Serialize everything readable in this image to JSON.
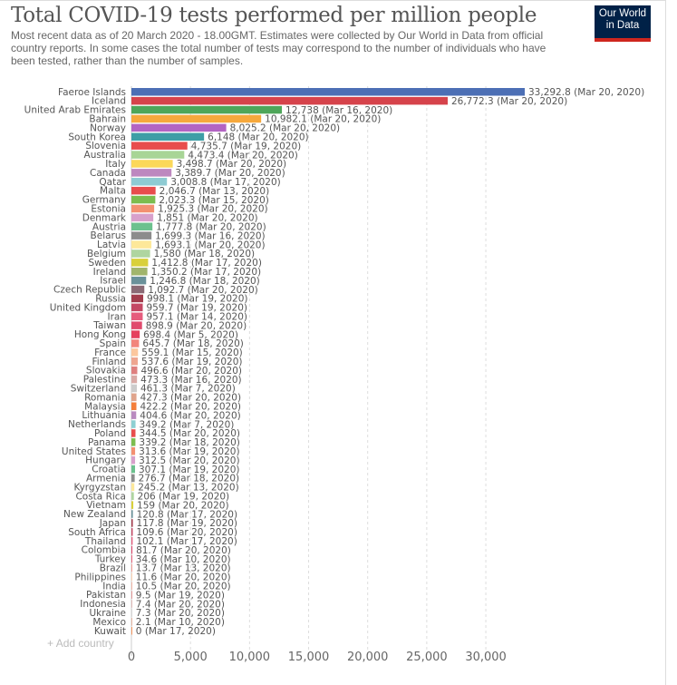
{
  "header": {
    "title": "Total COVID-19 tests performed per million people",
    "subtitle": "Most recent data as of 20 March 2020 - 18.00GMT. Estimates were collected by Our World in Data from official country reports. In some cases the total number of tests may correspond to the number of individuals who have been tested, rather than the number of samples.",
    "logo_line1": "Our World",
    "logo_line2": "in Data"
  },
  "controls": {
    "add_country_icon": "plus-icon",
    "add_country_label": "Add country"
  },
  "chart_data": {
    "type": "bar",
    "orientation": "horizontal",
    "title": "Total COVID-19 tests performed per million people",
    "xlabel": "",
    "ylabel": "",
    "xlim": [
      0,
      33292.8
    ],
    "xticks": [
      0,
      5000,
      10000,
      15000,
      20000,
      25000,
      30000
    ],
    "xtick_labels": [
      "0",
      "5,000",
      "10,000",
      "15,000",
      "20,000",
      "25,000",
      "30,000"
    ],
    "grid": "vertical dashed",
    "bars": [
      {
        "country": "Faeroe Islands",
        "value": 33292.8,
        "label": "33,292.8",
        "date": "Mar 20, 2020",
        "color": "#4c6fb5"
      },
      {
        "country": "Iceland",
        "value": 26772.3,
        "label": "26,772.3",
        "date": "Mar 20, 2020",
        "color": "#d6434b"
      },
      {
        "country": "United Arab Emirates",
        "value": 12738,
        "label": "12,738",
        "date": "Mar 16, 2020",
        "color": "#4ea65a"
      },
      {
        "country": "Bahrain",
        "value": 10982.1,
        "label": "10,982.1",
        "date": "Mar 20, 2020",
        "color": "#f6a83c"
      },
      {
        "country": "Norway",
        "value": 8025.2,
        "label": "8,025.2",
        "date": "Mar 20, 2020",
        "color": "#b364c3"
      },
      {
        "country": "South Korea",
        "value": 6148,
        "label": "6,148",
        "date": "Mar 20, 2020",
        "color": "#3e9ea6"
      },
      {
        "country": "Slovenia",
        "value": 4735.7,
        "label": "4,735.7",
        "date": "Mar 19, 2020",
        "color": "#e84d4d"
      },
      {
        "country": "Australia",
        "value": 4473.4,
        "label": "4,473.4",
        "date": "Mar 20, 2020",
        "color": "#a8d596"
      },
      {
        "country": "Italy",
        "value": 3498.7,
        "label": "3,498.7",
        "date": "Mar 20, 2020",
        "color": "#fbd85a"
      },
      {
        "country": "Canada",
        "value": 3389.7,
        "label": "3,389.7",
        "date": "Mar 20, 2020",
        "color": "#bd88bf"
      },
      {
        "country": "Qatar",
        "value": 3008.8,
        "label": "3,008.8",
        "date": "Mar 17, 2020",
        "color": "#8ecbd3"
      },
      {
        "country": "Malta",
        "value": 2046.7,
        "label": "2,046.7",
        "date": "Mar 13, 2020",
        "color": "#e84d4d"
      },
      {
        "country": "Germany",
        "value": 2023.3,
        "label": "2,023.3",
        "date": "Mar 15, 2020",
        "color": "#7cbd4f"
      },
      {
        "country": "Estonia",
        "value": 1925.3,
        "label": "1,925.3",
        "date": "Mar 20, 2020",
        "color": "#f39071"
      },
      {
        "country": "Denmark",
        "value": 1851,
        "label": "1,851",
        "date": "Mar 20, 2020",
        "color": "#d8a0cb"
      },
      {
        "country": "Austria",
        "value": 1777.8,
        "label": "1,777.8",
        "date": "Mar 20, 2020",
        "color": "#6cc18e"
      },
      {
        "country": "Belarus",
        "value": 1699.3,
        "label": "1,699.3",
        "date": "Mar 16, 2020",
        "color": "#8c8c8c"
      },
      {
        "country": "Latvia",
        "value": 1693.1,
        "label": "1,693.1",
        "date": "Mar 20, 2020",
        "color": "#fde89a"
      },
      {
        "country": "Belgium",
        "value": 1580,
        "label": "1,580",
        "date": "Mar 18, 2020",
        "color": "#afd5a0"
      },
      {
        "country": "Sweden",
        "value": 1412.8,
        "label": "1,412.8",
        "date": "Mar 17, 2020",
        "color": "#d9d03a"
      },
      {
        "country": "Ireland",
        "value": 1350.2,
        "label": "1,350.2",
        "date": "Mar 17, 2020",
        "color": "#a1b56c"
      },
      {
        "country": "Israel",
        "value": 1246.8,
        "label": "1,246.8",
        "date": "Mar 18, 2020",
        "color": "#6a919a"
      },
      {
        "country": "Czech Republic",
        "value": 1092.7,
        "label": "1,092.7",
        "date": "Mar 20, 2020",
        "color": "#8a6a75"
      },
      {
        "country": "Russia",
        "value": 998.1,
        "label": "998.1",
        "date": "Mar 19, 2020",
        "color": "#a23c4c"
      },
      {
        "country": "United Kingdom",
        "value": 959.7,
        "label": "959.7",
        "date": "Mar 19, 2020",
        "color": "#c44864"
      },
      {
        "country": "Iran",
        "value": 957.1,
        "label": "957.1",
        "date": "Mar 14, 2020",
        "color": "#e65c7d"
      },
      {
        "country": "Taiwan",
        "value": 898.9,
        "label": "898.9",
        "date": "Mar 20, 2020",
        "color": "#e04a6d"
      },
      {
        "country": "Hong Kong",
        "value": 698.4,
        "label": "698.4",
        "date": "Mar 5, 2020",
        "color": "#e5415e"
      },
      {
        "country": "Spain",
        "value": 645.7,
        "label": "645.7",
        "date": "Mar 18, 2020",
        "color": "#f2857c"
      },
      {
        "country": "France",
        "value": 559.1,
        "label": "559.1",
        "date": "Mar 15, 2020",
        "color": "#fcc79e"
      },
      {
        "country": "Finland",
        "value": 537.6,
        "label": "537.6",
        "date": "Mar 19, 2020",
        "color": "#eea590"
      },
      {
        "country": "Slovakia",
        "value": 496.6,
        "label": "496.6",
        "date": "Mar 20, 2020",
        "color": "#de7f7f"
      },
      {
        "country": "Palestine",
        "value": 473.3,
        "label": "473.3",
        "date": "Mar 16, 2020",
        "color": "#d9aaa6"
      },
      {
        "country": "Switzerland",
        "value": 461.3,
        "label": "461.3",
        "date": "Mar 7, 2020",
        "color": "#cccccc"
      },
      {
        "country": "Romania",
        "value": 427.3,
        "label": "427.3",
        "date": "Mar 20, 2020",
        "color": "#e0a48c"
      },
      {
        "country": "Malaysia",
        "value": 422.2,
        "label": "422.2",
        "date": "Mar 20, 2020",
        "color": "#f47e3a"
      },
      {
        "country": "Lithuania",
        "value": 404.6,
        "label": "404.6",
        "date": "Mar 20, 2020",
        "color": "#b98abf"
      },
      {
        "country": "Netherlands",
        "value": 349.2,
        "label": "349.2",
        "date": "Mar 7, 2020",
        "color": "#8ecfd2"
      },
      {
        "country": "Poland",
        "value": 344.5,
        "label": "344.5",
        "date": "Mar 20, 2020",
        "color": "#e84d4d"
      },
      {
        "country": "Panama",
        "value": 339.2,
        "label": "339.2",
        "date": "Mar 18, 2020",
        "color": "#7cbd4f"
      },
      {
        "country": "United States",
        "value": 313.6,
        "label": "313.6",
        "date": "Mar 19, 2020",
        "color": "#f39071"
      },
      {
        "country": "Hungary",
        "value": 312.5,
        "label": "312.5",
        "date": "Mar 20, 2020",
        "color": "#d8a0cb"
      },
      {
        "country": "Croatia",
        "value": 307.1,
        "label": "307.1",
        "date": "Mar 19, 2020",
        "color": "#6cc18e"
      },
      {
        "country": "Armenia",
        "value": 276.7,
        "label": "276.7",
        "date": "Mar 18, 2020",
        "color": "#8c8c8c"
      },
      {
        "country": "Kyrgyzstan",
        "value": 245.2,
        "label": "245.2",
        "date": "Mar 13, 2020",
        "color": "#fde89a"
      },
      {
        "country": "Costa Rica",
        "value": 206,
        "label": "206",
        "date": "Mar 19, 2020",
        "color": "#afd5a0"
      },
      {
        "country": "Vietnam",
        "value": 159,
        "label": "159",
        "date": "Mar 20, 2020",
        "color": "#d9d03a"
      },
      {
        "country": "New Zealand",
        "value": 120.8,
        "label": "120.8",
        "date": "Mar 17, 2020",
        "color": "#6a919a"
      },
      {
        "country": "Japan",
        "value": 117.8,
        "label": "117.8",
        "date": "Mar 19, 2020",
        "color": "#a23c4c"
      },
      {
        "country": "South Africa",
        "value": 109.6,
        "label": "109.6",
        "date": "Mar 20, 2020",
        "color": "#c44864"
      },
      {
        "country": "Thailand",
        "value": 102.1,
        "label": "102.1",
        "date": "Mar 17, 2020",
        "color": "#e65c7d"
      },
      {
        "country": "Colombia",
        "value": 81.7,
        "label": "81.7",
        "date": "Mar 20, 2020",
        "color": "#e04a6d"
      },
      {
        "country": "Turkey",
        "value": 34.6,
        "label": "34.6",
        "date": "Mar 10, 2020",
        "color": "#e5415e"
      },
      {
        "country": "Brazil",
        "value": 13.7,
        "label": "13.7",
        "date": "Mar 13, 2020",
        "color": "#f2857c"
      },
      {
        "country": "Philippines",
        "value": 11.6,
        "label": "11.6",
        "date": "Mar 20, 2020",
        "color": "#fcc79e"
      },
      {
        "country": "India",
        "value": 10.5,
        "label": "10.5",
        "date": "Mar 20, 2020",
        "color": "#eea590"
      },
      {
        "country": "Pakistan",
        "value": 9.5,
        "label": "9.5",
        "date": "Mar 19, 2020",
        "color": "#de7f7f"
      },
      {
        "country": "Indonesia",
        "value": 7.4,
        "label": "7.4",
        "date": "Mar 20, 2020",
        "color": "#d9aaa6"
      },
      {
        "country": "Ukraine",
        "value": 7.3,
        "label": "7.3",
        "date": "Mar 20, 2020",
        "color": "#cccccc"
      },
      {
        "country": "Mexico",
        "value": 2.1,
        "label": "2.1",
        "date": "Mar 10, 2020",
        "color": "#e0a48c"
      },
      {
        "country": "Kuwait",
        "value": 0,
        "label": "0",
        "date": "Mar 17, 2020",
        "color": "#f47e3a"
      }
    ]
  }
}
